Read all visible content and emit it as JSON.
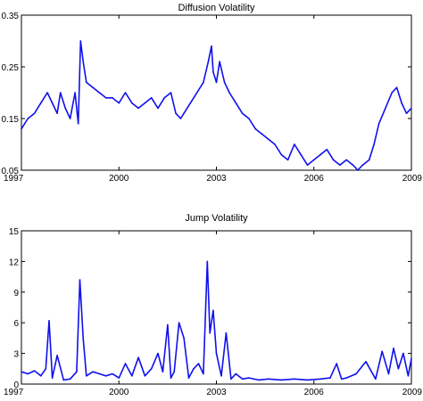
{
  "chart_data": [
    {
      "type": "line",
      "title": "Diffusion Volatility",
      "xlabel": "",
      "ylabel": "",
      "xlim": [
        1997,
        2009
      ],
      "ylim": [
        0.05,
        0.35
      ],
      "xticks": [
        "1997",
        "2000",
        "2003",
        "2006",
        "2009"
      ],
      "yticks": [
        "0.05",
        "0.15",
        "0.25",
        "0.35"
      ],
      "grid": false,
      "series": [
        {
          "color": "#1010ee",
          "x": [
            1997.0,
            1997.2,
            1997.4,
            1997.6,
            1997.8,
            1997.95,
            1998.1,
            1998.2,
            1998.35,
            1998.5,
            1998.65,
            1998.75,
            1998.82,
            1998.9,
            1999.0,
            1999.2,
            1999.4,
            1999.6,
            1999.8,
            2000.0,
            2000.2,
            2000.4,
            2000.6,
            2000.8,
            2001.0,
            2001.2,
            2001.4,
            2001.6,
            2001.75,
            2001.9,
            2002.0,
            2002.2,
            2002.4,
            2002.6,
            2002.75,
            2002.85,
            2002.9,
            2003.0,
            2003.1,
            2003.25,
            2003.4,
            2003.6,
            2003.8,
            2004.0,
            2004.2,
            2004.4,
            2004.6,
            2004.8,
            2005.0,
            2005.2,
            2005.4,
            2005.6,
            2005.8,
            2006.0,
            2006.2,
            2006.4,
            2006.6,
            2006.8,
            2007.0,
            2007.2,
            2007.35,
            2007.5,
            2007.7,
            2007.85,
            2008.0,
            2008.2,
            2008.4,
            2008.55,
            2008.7,
            2008.85,
            2009.0
          ],
          "y": [
            0.13,
            0.15,
            0.16,
            0.18,
            0.2,
            0.18,
            0.16,
            0.2,
            0.17,
            0.15,
            0.2,
            0.14,
            0.3,
            0.26,
            0.22,
            0.21,
            0.2,
            0.19,
            0.19,
            0.18,
            0.2,
            0.18,
            0.17,
            0.18,
            0.19,
            0.17,
            0.19,
            0.2,
            0.16,
            0.15,
            0.16,
            0.18,
            0.2,
            0.22,
            0.26,
            0.29,
            0.24,
            0.22,
            0.26,
            0.22,
            0.2,
            0.18,
            0.16,
            0.15,
            0.13,
            0.12,
            0.11,
            0.1,
            0.08,
            0.07,
            0.1,
            0.08,
            0.06,
            0.07,
            0.08,
            0.09,
            0.07,
            0.06,
            0.07,
            0.06,
            0.05,
            0.06,
            0.07,
            0.1,
            0.14,
            0.17,
            0.2,
            0.21,
            0.18,
            0.16,
            0.17
          ]
        }
      ]
    },
    {
      "type": "line",
      "title": "Jump Volatility",
      "xlabel": "",
      "ylabel": "",
      "xlim": [
        1997,
        2009
      ],
      "ylim": [
        0,
        15
      ],
      "xticks": [
        "1997",
        "2000",
        "2003",
        "2006",
        "2009"
      ],
      "yticks": [
        "0",
        "3",
        "6",
        "9",
        "12",
        "15"
      ],
      "grid": false,
      "series": [
        {
          "color": "#1010ee",
          "x": [
            1997.0,
            1997.2,
            1997.4,
            1997.6,
            1997.75,
            1997.85,
            1997.95,
            1998.1,
            1998.3,
            1998.5,
            1998.7,
            1998.8,
            1998.9,
            1999.0,
            1999.2,
            1999.4,
            1999.6,
            1999.8,
            2000.0,
            2000.2,
            2000.4,
            2000.6,
            2000.8,
            2001.0,
            2001.2,
            2001.35,
            2001.5,
            2001.6,
            2001.7,
            2001.85,
            2002.0,
            2002.15,
            2002.3,
            2002.45,
            2002.6,
            2002.72,
            2002.8,
            2002.9,
            2003.0,
            2003.15,
            2003.3,
            2003.45,
            2003.6,
            2003.8,
            2004.0,
            2004.3,
            2004.6,
            2005.0,
            2005.4,
            2005.8,
            2006.2,
            2006.5,
            2006.7,
            2006.85,
            2007.0,
            2007.3,
            2007.6,
            2007.9,
            2008.1,
            2008.3,
            2008.45,
            2008.6,
            2008.75,
            2008.9,
            2009.0
          ],
          "y": [
            1.2,
            1.0,
            1.3,
            0.8,
            1.5,
            6.2,
            0.6,
            2.8,
            0.4,
            0.5,
            1.2,
            10.2,
            4.5,
            0.8,
            1.2,
            1.0,
            0.8,
            1.0,
            0.6,
            2.0,
            0.8,
            2.6,
            0.8,
            1.5,
            3.0,
            1.2,
            5.8,
            0.6,
            1.2,
            6.0,
            4.5,
            0.6,
            1.5,
            2.0,
            1.0,
            12.0,
            5.0,
            7.2,
            3.0,
            0.8,
            5.0,
            0.5,
            1.0,
            0.5,
            0.6,
            0.4,
            0.5,
            0.4,
            0.5,
            0.4,
            0.5,
            0.6,
            2.0,
            0.5,
            0.6,
            1.0,
            2.2,
            0.5,
            3.2,
            1.0,
            3.5,
            1.5,
            3.0,
            0.8,
            2.5
          ]
        }
      ]
    }
  ]
}
